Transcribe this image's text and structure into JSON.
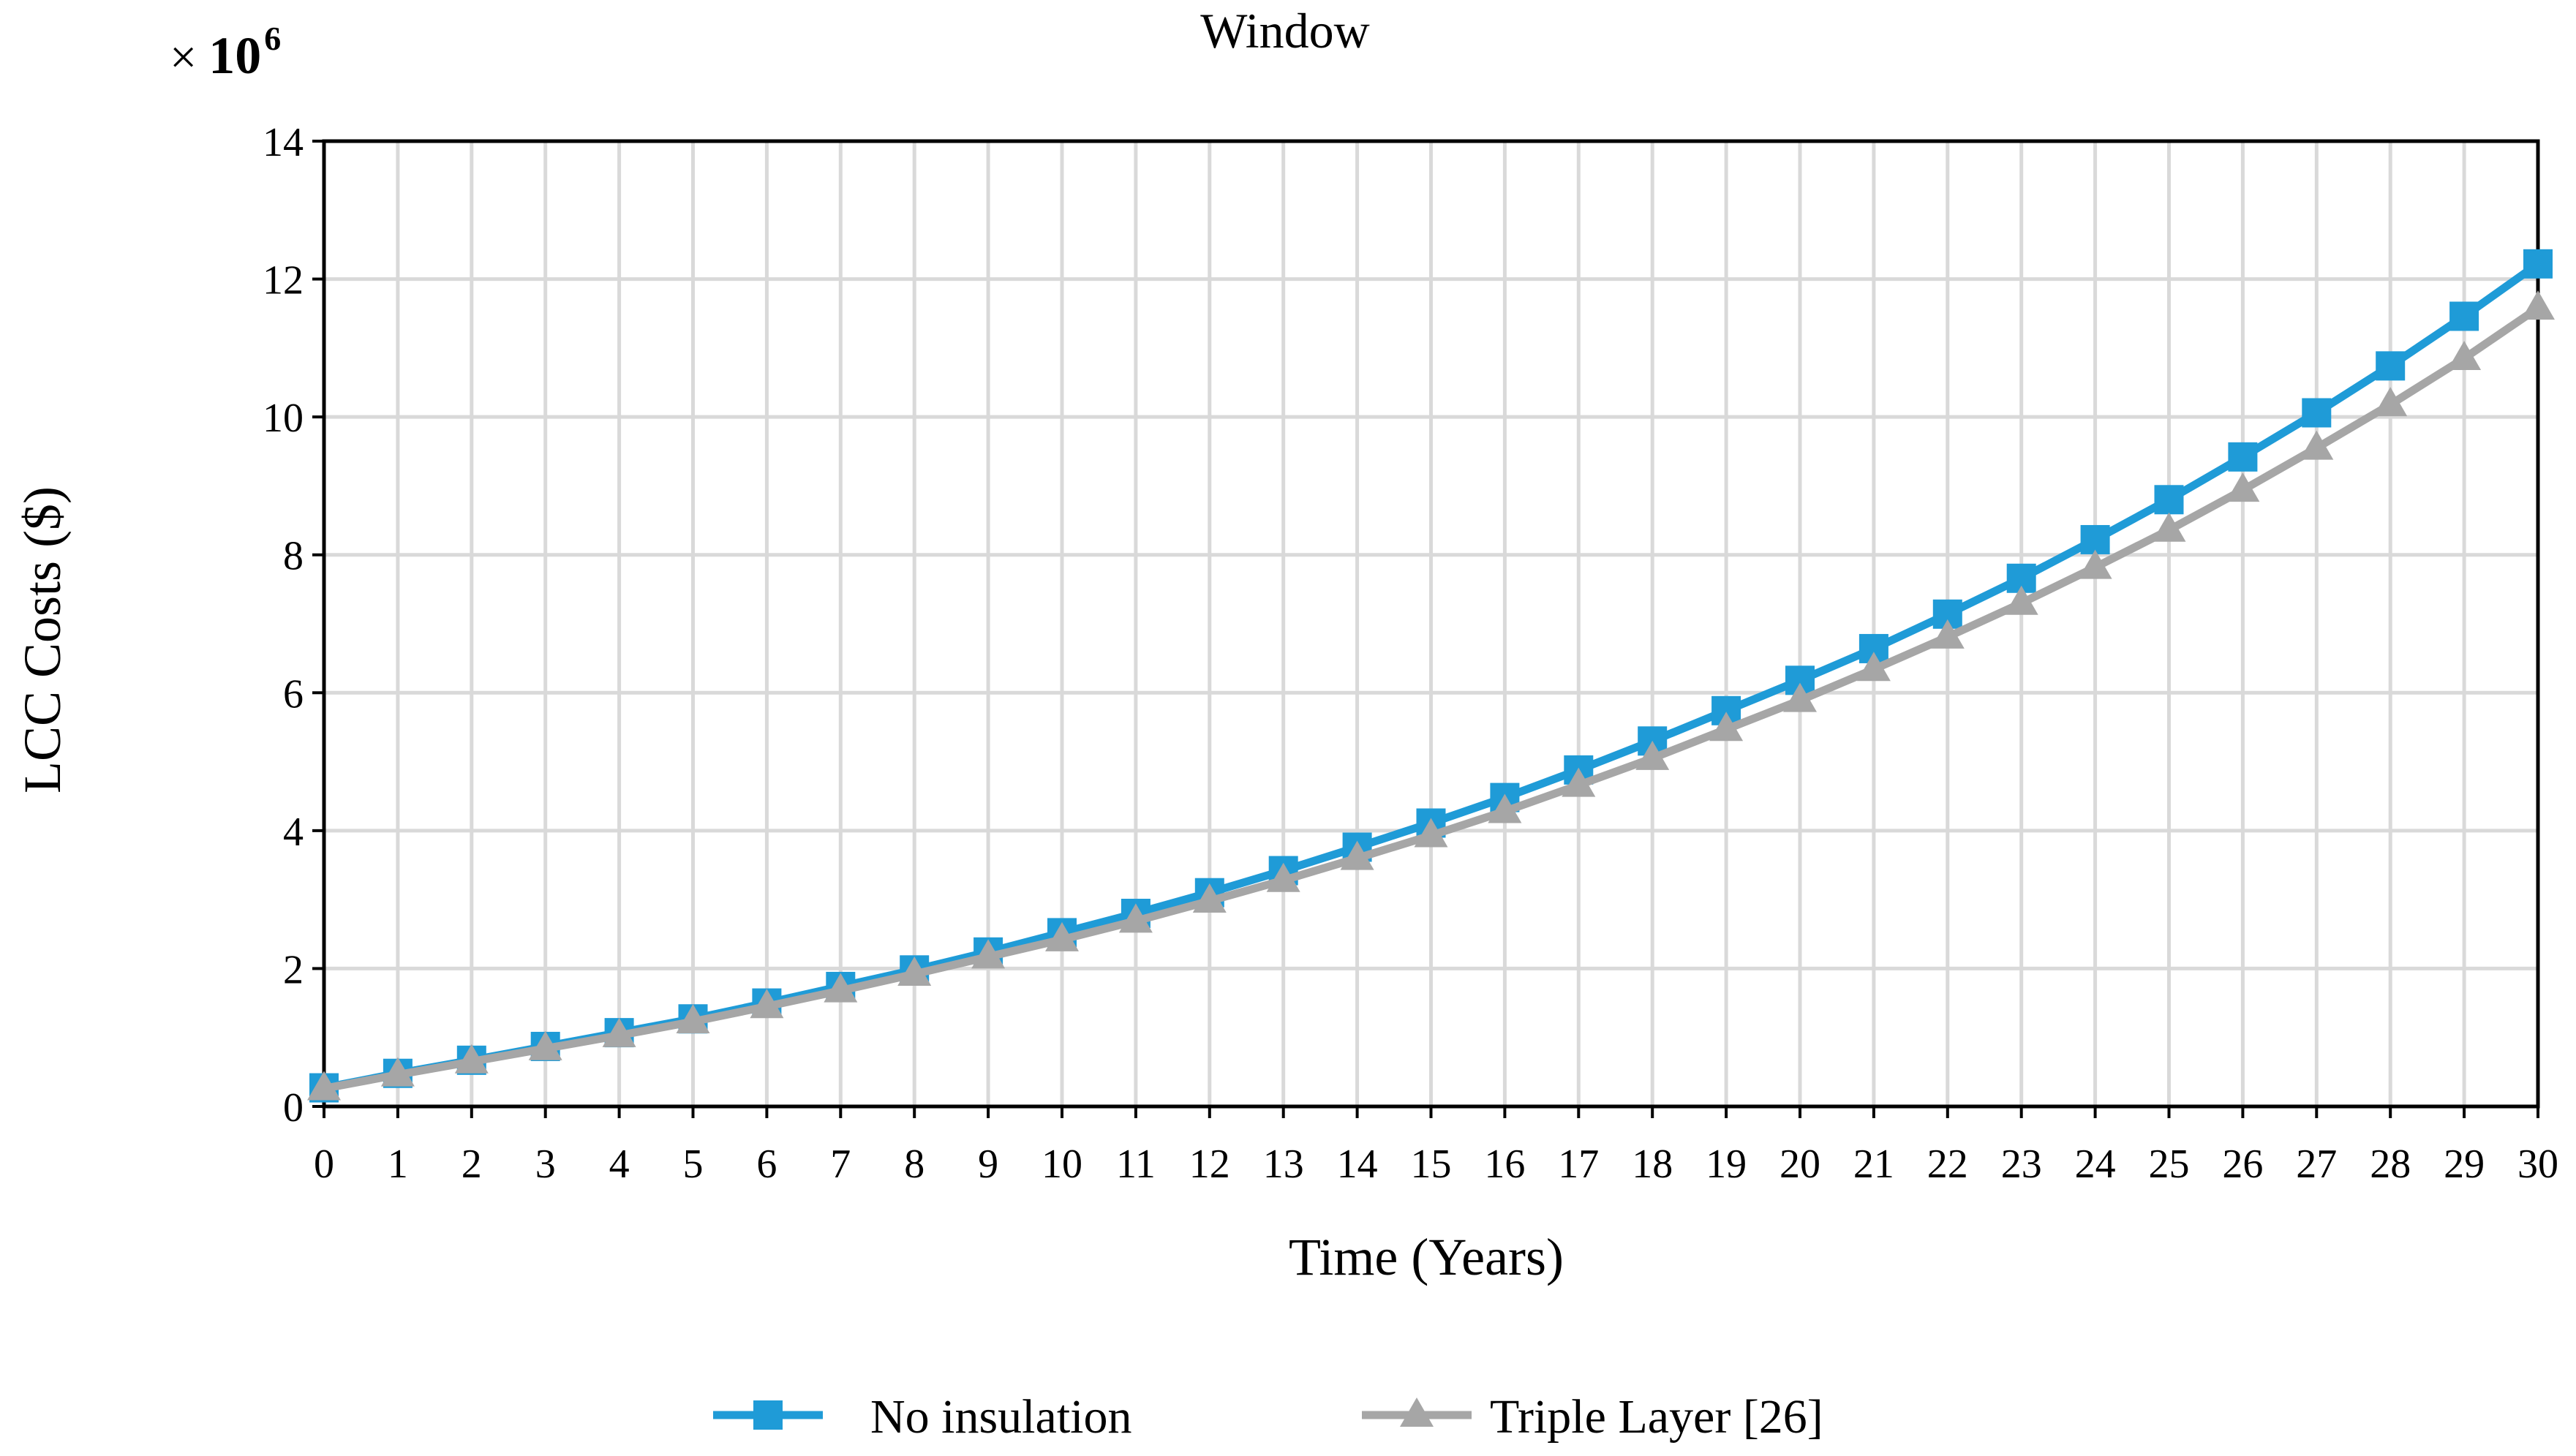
{
  "chart_data": {
    "type": "line",
    "title": "Window",
    "y_multiplier": {
      "times": "×",
      "base": "10",
      "exponent": "6"
    },
    "xlabel": "Time (Years)",
    "ylabel": "LCC Costs ($)",
    "x": [
      0,
      1,
      2,
      3,
      4,
      5,
      6,
      7,
      8,
      9,
      10,
      11,
      12,
      13,
      14,
      15,
      16,
      17,
      18,
      19,
      20,
      21,
      22,
      23,
      24,
      25,
      26,
      27,
      28,
      29,
      30
    ],
    "x_tick_labels": [
      "0",
      "1",
      "2",
      "3",
      "4",
      "5",
      "6",
      "7",
      "8",
      "9",
      "10",
      "11",
      "12",
      "13",
      "14",
      "15",
      "16",
      "17",
      "18",
      "19",
      "20",
      "21",
      "22",
      "23",
      "24",
      "25",
      "26",
      "27",
      "28",
      "29",
      "30"
    ],
    "xlim": [
      0,
      30
    ],
    "ylim": [
      0,
      14
    ],
    "y_ticks": [
      0,
      2,
      4,
      6,
      8,
      10,
      12,
      14
    ],
    "y_tick_labels": [
      "0",
      "2",
      "4",
      "6",
      "8",
      "10",
      "12",
      "14"
    ],
    "grid": true,
    "legend_position": "bottom",
    "series": [
      {
        "name": "No insulation",
        "color": "#1f9bd7",
        "marker": "square",
        "values": [
          0.27,
          0.48,
          0.67,
          0.87,
          1.07,
          1.27,
          1.5,
          1.74,
          1.98,
          2.24,
          2.52,
          2.8,
          3.1,
          3.42,
          3.76,
          4.11,
          4.48,
          4.88,
          5.3,
          5.74,
          6.18,
          6.64,
          7.14,
          7.66,
          8.22,
          8.8,
          9.42,
          10.06,
          10.74,
          11.46,
          12.22
        ]
      },
      {
        "name": "Triple Layer [26]",
        "color": "#a6a6a6",
        "marker": "triangle",
        "values": [
          0.26,
          0.46,
          0.65,
          0.84,
          1.03,
          1.23,
          1.45,
          1.68,
          1.92,
          2.17,
          2.42,
          2.69,
          2.98,
          3.28,
          3.6,
          3.93,
          4.28,
          4.66,
          5.05,
          5.47,
          5.89,
          6.34,
          6.81,
          7.3,
          7.82,
          8.36,
          8.94,
          9.55,
          10.18,
          10.85,
          11.58
        ]
      }
    ]
  }
}
